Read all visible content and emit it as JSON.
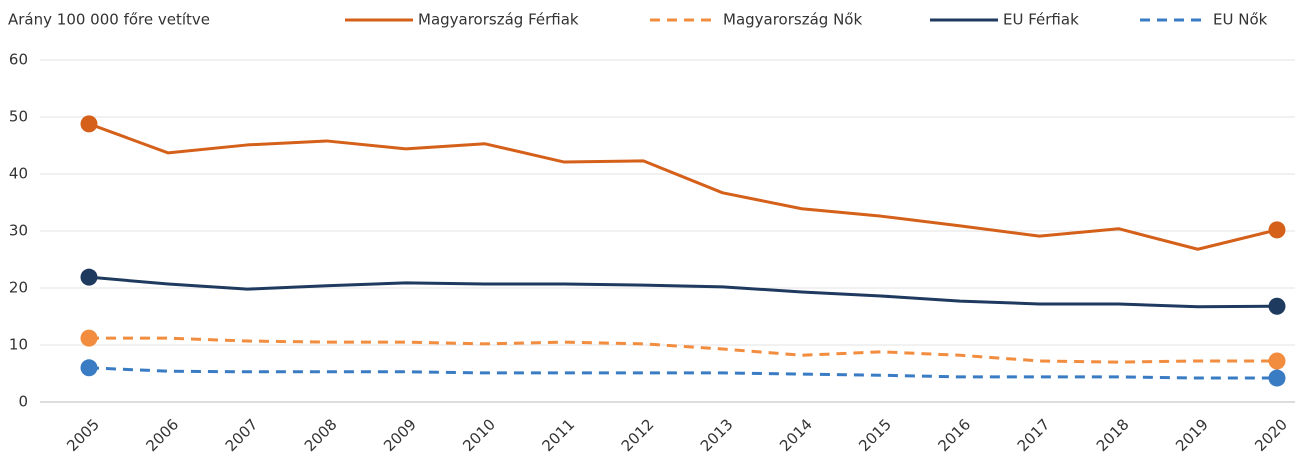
{
  "chart_data": {
    "type": "line",
    "ylabel": "Arány 100 000 főre vetítve",
    "categories": [
      "2005",
      "2006",
      "2007",
      "2008",
      "2009",
      "2010",
      "2011",
      "2012",
      "2013",
      "2014",
      "2015",
      "2016",
      "2017",
      "2018",
      "2019",
      "2020"
    ],
    "ylim": [
      0,
      60
    ],
    "yticks": [
      0,
      10,
      20,
      30,
      40,
      50,
      60
    ],
    "grid": true,
    "endpoint_markers": true,
    "series": [
      {
        "name": "Magyarország Férfiak",
        "color": "#d4601a",
        "dashed": false,
        "values": [
          48.8,
          43.7,
          45.1,
          45.8,
          44.4,
          45.3,
          42.1,
          42.3,
          36.7,
          33.9,
          32.6,
          30.9,
          29.1,
          30.4,
          26.8,
          30.2
        ]
      },
      {
        "name": "Magyarország Nők",
        "color": "#f28c3e",
        "dashed": true,
        "values": [
          11.2,
          11.2,
          10.7,
          10.5,
          10.5,
          10.2,
          10.5,
          10.2,
          9.3,
          8.2,
          8.8,
          8.2,
          7.2,
          7.0,
          7.2,
          7.2
        ]
      },
      {
        "name": "EU Férfiak",
        "color": "#1f3a5f",
        "dashed": false,
        "values": [
          21.9,
          20.7,
          19.8,
          20.4,
          20.9,
          20.7,
          20.7,
          20.5,
          20.2,
          19.3,
          18.6,
          17.7,
          17.2,
          17.2,
          16.7,
          16.8
        ]
      },
      {
        "name": "EU Nők",
        "color": "#3a7cc4",
        "dashed": true,
        "values": [
          6.0,
          5.4,
          5.3,
          5.3,
          5.3,
          5.1,
          5.1,
          5.1,
          5.1,
          4.9,
          4.7,
          4.4,
          4.4,
          4.4,
          4.2,
          4.2
        ]
      }
    ]
  }
}
